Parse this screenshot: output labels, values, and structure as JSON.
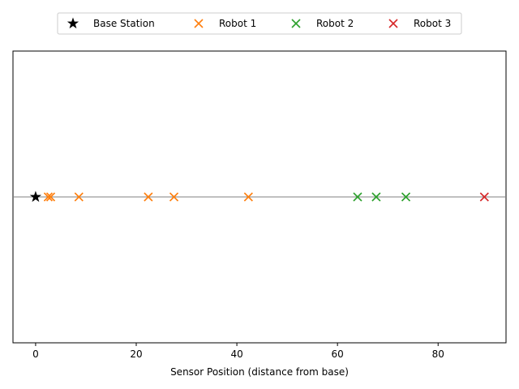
{
  "chart_data": {
    "type": "scatter",
    "title": "",
    "xlabel": "Sensor Position (distance from base)",
    "ylabel": "",
    "xlim": [
      -4.5,
      93.5
    ],
    "ylim": [
      -1,
      1
    ],
    "xticks": [
      0,
      20,
      40,
      60,
      80
    ],
    "xtick_labels": [
      "0",
      "20",
      "40",
      "60",
      "80"
    ],
    "yticks": [],
    "grid": false,
    "legend_position": "top-center",
    "reference_line": {
      "y": 0,
      "color": "#808080"
    },
    "series": [
      {
        "name": "Base Station",
        "marker": "star",
        "color": "#000000",
        "x": [
          0
        ],
        "y": [
          0
        ]
      },
      {
        "name": "Robot 1",
        "marker": "x",
        "color": "#ff7f0e",
        "x": [
          2.5,
          3.0,
          8.6,
          22.4,
          27.5,
          42.3
        ],
        "y": [
          0,
          0,
          0,
          0,
          0,
          0
        ]
      },
      {
        "name": "Robot 2",
        "marker": "x",
        "color": "#2ca02c",
        "x": [
          64.0,
          67.7,
          73.6
        ],
        "y": [
          0,
          0,
          0
        ]
      },
      {
        "name": "Robot 3",
        "marker": "x",
        "color": "#d62728",
        "x": [
          89.2
        ],
        "y": [
          0
        ]
      }
    ]
  }
}
